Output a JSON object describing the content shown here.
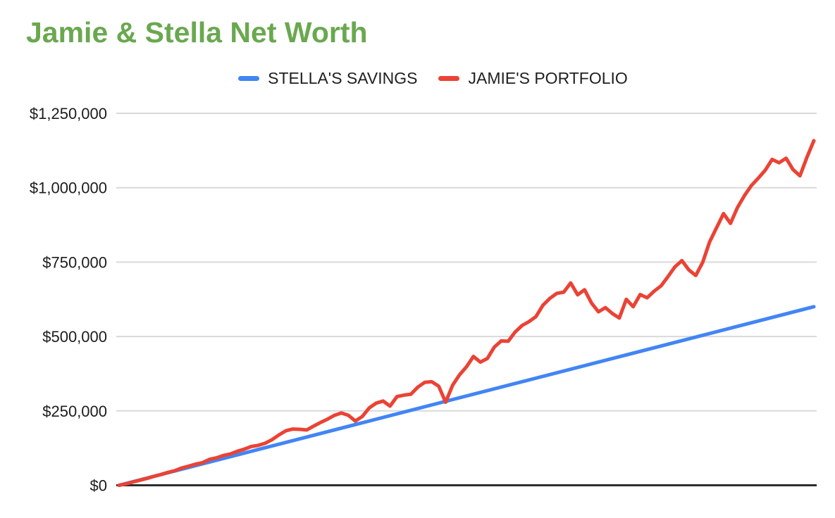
{
  "page": {
    "background": "#ffffff"
  },
  "chart_data": {
    "type": "line",
    "title": "Jamie & Stella Net Worth",
    "legend_position": "top",
    "grid": true,
    "colors": {
      "title": "#6aa84f",
      "grid": "#d9d9d9",
      "axis": "#2d2d2d",
      "tick_label": "#1c1c1c",
      "background": "#ffffff"
    },
    "y_axis": {
      "min": 0,
      "max": 1250000,
      "ticks": [
        {
          "value": 0,
          "label": "$0"
        },
        {
          "value": 250000,
          "label": "$250,000"
        },
        {
          "value": 500000,
          "label": "$500,000"
        },
        {
          "value": 750000,
          "label": "$750,000"
        },
        {
          "value": 1000000,
          "label": "$1,000,000"
        },
        {
          "value": 1250000,
          "label": "$1,250,000"
        }
      ]
    },
    "x_axis": {
      "ticks": []
    },
    "series": [
      {
        "name": "STELLA'S SAVINGS",
        "color": "#4285f4",
        "shape": "linear",
        "values": [
          0,
          600000
        ]
      },
      {
        "name": "JAMIE'S PORTFOLIO",
        "color": "#ea4335",
        "shape": "volatile",
        "values": [
          0,
          5000,
          11000,
          17000,
          23000,
          30000,
          36000,
          43000,
          49000,
          58000,
          64000,
          71000,
          76000,
          87000,
          92000,
          100000,
          105000,
          114000,
          121000,
          130000,
          134000,
          141000,
          153000,
          169000,
          183000,
          189000,
          188000,
          186000,
          199000,
          211000,
          222000,
          235000,
          243000,
          235000,
          216000,
          231000,
          260000,
          276000,
          283000,
          266000,
          298000,
          303000,
          306000,
          330000,
          346000,
          348000,
          333000,
          279000,
          336000,
          371000,
          398000,
          433000,
          414000,
          426000,
          464000,
          485000,
          484000,
          515000,
          537000,
          550000,
          567000,
          605000,
          628000,
          645000,
          649000,
          680000,
          640000,
          657000,
          612000,
          583000,
          597000,
          577000,
          562000,
          625000,
          600000,
          641000,
          630000,
          652000,
          670000,
          701000,
          734000,
          755000,
          724000,
          705000,
          749000,
          818000,
          866000,
          913000,
          880000,
          933000,
          973000,
          1007000,
          1032000,
          1059000,
          1095000,
          1084000,
          1099000,
          1061000,
          1040000,
          1102000,
          1158000
        ]
      }
    ]
  }
}
